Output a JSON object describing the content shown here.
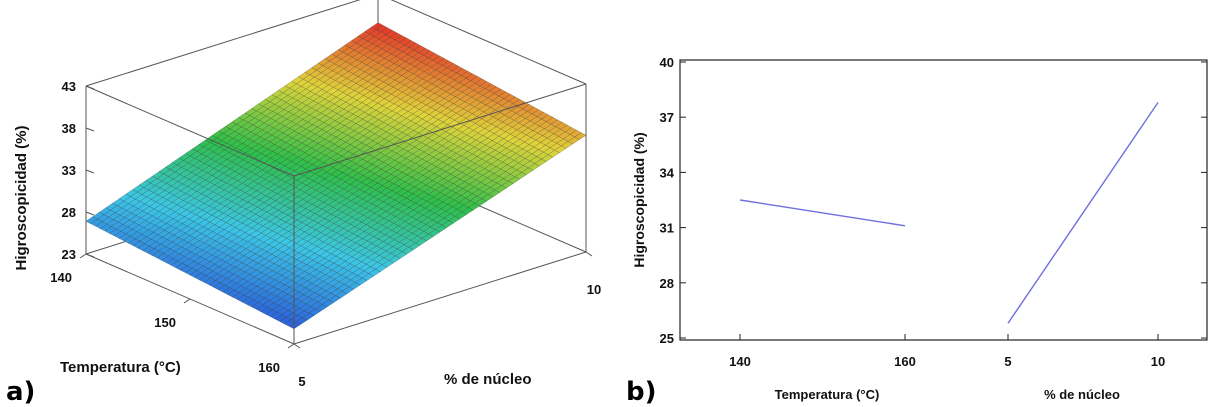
{
  "panels": [
    {
      "letter": "a)"
    },
    {
      "letter": "b)"
    }
  ],
  "chart_data": [
    {
      "type": "surface3d",
      "title": "",
      "zlabel": "Higroscopicidad (%)",
      "xlabel": "Temperatura (°C)",
      "ylabel": "% de núcleo",
      "z_ticks": [
        "23",
        "28",
        "33",
        "38",
        "43"
      ],
      "x_ticks": [
        "140",
        "150",
        "160"
      ],
      "y_ticks": [
        "5",
        "10"
      ],
      "zlim": [
        23,
        43
      ],
      "xlim": [
        140,
        160
      ],
      "ylim": [
        5,
        10
      ],
      "corner_values": {
        "t140_n5": 26.9,
        "t160_n5": 24.8,
        "t140_n10": 39.6,
        "t160_n10": 36.9
      },
      "colormap": [
        "#2b5fd9",
        "#3cc7e6",
        "#2fbf4a",
        "#e0d43a",
        "#e3332a"
      ]
    },
    {
      "type": "line",
      "title": "",
      "ylabel": "Higroscopicidad (%)",
      "ylim": [
        25,
        40
      ],
      "y_ticks": [
        "25",
        "28",
        "31",
        "34",
        "37",
        "40"
      ],
      "factors": [
        {
          "name": "Temperatura (°C)",
          "ticks": [
            "140",
            "160"
          ],
          "x": [
            140,
            160
          ],
          "y": [
            32.5,
            31.1
          ]
        },
        {
          "name": "% de núcleo",
          "ticks": [
            "5",
            "10"
          ],
          "x": [
            5,
            10
          ],
          "y": [
            25.8,
            37.8
          ]
        }
      ],
      "line_color": "#6e6edc",
      "grid": false
    }
  ]
}
